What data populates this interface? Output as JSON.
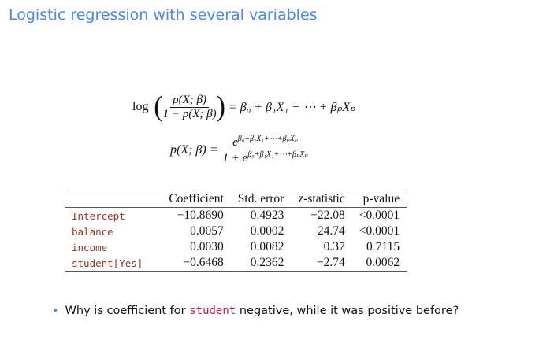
{
  "title": "Logistic regression with several variables",
  "equations": [
    {
      "lhs": "log",
      "numerator": "p(X; β)",
      "denominator": "1 − p(X; β)",
      "rhs": "= β₀ + β₁X₁ + ⋯ + βₚXₚ"
    },
    {
      "lhs": "p(X; β) =",
      "numerator_base": "e",
      "numerator_exp": "β₀+β₁X₁+⋯+βₚXₚ",
      "denominator_base": "1 + e",
      "denominator_exp": "β₀+β₁X₁+⋯+βₚXₚ"
    }
  ],
  "table": {
    "header": [
      "Coefficient",
      "Std. error",
      "z-statistic",
      "p-value"
    ],
    "rows": [
      {
        "label": "Intercept",
        "cells": [
          "−10.8690",
          "0.4923",
          "−22.08",
          "<0.0001"
        ]
      },
      {
        "label": "balance",
        "cells": [
          "0.0057",
          "0.0002",
          "24.74",
          "<0.0001"
        ]
      },
      {
        "label": "income",
        "cells": [
          "0.0030",
          "0.0082",
          "0.37",
          "0.7115"
        ]
      },
      {
        "label": "student[Yes]",
        "cells": [
          "−0.6468",
          "0.2362",
          "−2.74",
          "0.0062"
        ]
      }
    ]
  },
  "bullet": {
    "before": "Why is coefficient for ",
    "code": "student",
    "after": " negative, while it was positive before?"
  }
}
